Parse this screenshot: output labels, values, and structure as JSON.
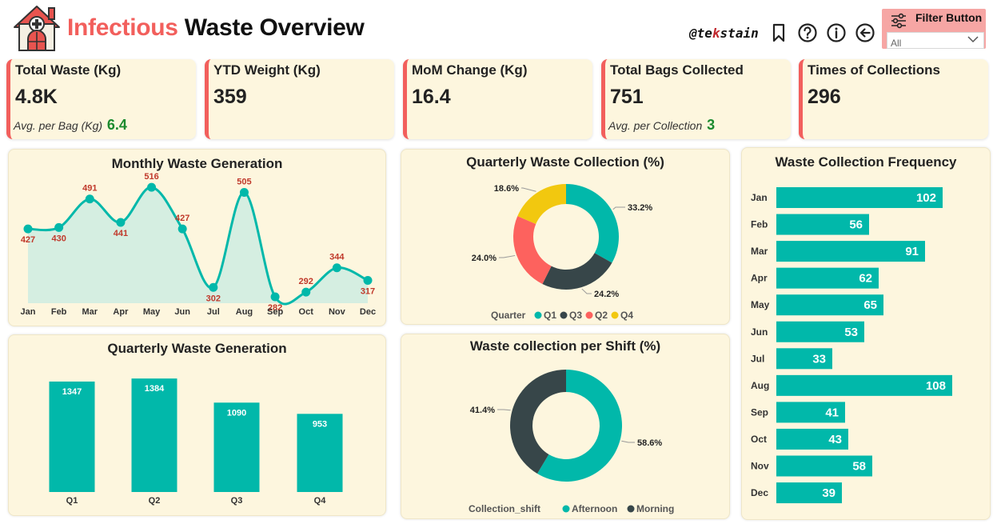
{
  "header": {
    "title_accent": "Infectious",
    "title_rest": "Waste Overview",
    "logo_icon": "hospital-house-icon",
    "handle": "@tekstain",
    "tool_icons": [
      "bookmark-icon",
      "help-icon",
      "info-icon",
      "back-arrow-icon"
    ],
    "filter": {
      "label": "Filter Button",
      "icon": "sliders-icon",
      "value": "All"
    }
  },
  "kpis": [
    {
      "title": "Total Waste (Kg)",
      "value": "4.8K",
      "sub_label": "Avg. per Bag (Kg)",
      "sub_value": "6.4"
    },
    {
      "title": "YTD Weight (Kg)",
      "value": "359"
    },
    {
      "title": "MoM Change (Kg)",
      "value": "16.4"
    },
    {
      "title": "Total Bags Collected",
      "value": "751",
      "sub_label": "Avg. per Collection",
      "sub_value": "3"
    },
    {
      "title": "Times of Collections",
      "value": "296"
    }
  ],
  "colors": {
    "teal": "#01b8aa",
    "dark": "#374649",
    "coral": "#fd625e",
    "yellow": "#f2c80f",
    "accent_red": "#f25f5c",
    "label_red": "#c0392b",
    "green": "#1b8a2e",
    "panel_bg": "#fdf6de",
    "area_fill": "#d5eee1"
  },
  "chart_data": [
    {
      "id": "monthly",
      "type": "area",
      "title": "Monthly Waste Generation",
      "categories": [
        "Jan",
        "Feb",
        "Mar",
        "Apr",
        "May",
        "Jun",
        "Jul",
        "Aug",
        "Sep",
        "Oct",
        "Nov",
        "Dec"
      ],
      "values": [
        427,
        430,
        491,
        441,
        516,
        427,
        302,
        505,
        282,
        292,
        344,
        317
      ],
      "grid": false,
      "legend": "none"
    },
    {
      "id": "quarterly_collection",
      "type": "pie",
      "title": "Quarterly Waste Collection (%)",
      "legend_title": "Quarter",
      "labels": [
        "Q1",
        "Q3",
        "Q2",
        "Q4"
      ],
      "values": [
        33.2,
        24.2,
        24.0,
        18.6
      ],
      "value_labels": [
        "33.2%",
        "24.2%",
        "24.0%",
        "18.6%"
      ],
      "donut": true,
      "legend": "bottom"
    },
    {
      "id": "frequency",
      "type": "bar",
      "orientation": "horizontal",
      "title": "Waste Collection Frequency",
      "categories": [
        "Jan",
        "Feb",
        "Mar",
        "Apr",
        "May",
        "Jun",
        "Jul",
        "Aug",
        "Sep",
        "Oct",
        "Nov",
        "Dec"
      ],
      "values": [
        102,
        56,
        91,
        62,
        65,
        53,
        33,
        108,
        41,
        43,
        58,
        39
      ],
      "grid": false,
      "legend": "none"
    },
    {
      "id": "quarterly_generation",
      "type": "bar",
      "title": "Quarterly Waste Generation",
      "categories": [
        "Q1",
        "Q2",
        "Q3",
        "Q4"
      ],
      "values": [
        1347,
        1384,
        1090,
        953
      ],
      "grid": false,
      "legend": "none"
    },
    {
      "id": "shift",
      "type": "pie",
      "title": "Waste collection per Shift (%)",
      "legend_title": "Collection_shift",
      "labels": [
        "Afternoon",
        "Morning"
      ],
      "values": [
        58.6,
        41.4
      ],
      "value_labels": [
        "58.6%",
        "41.4%"
      ],
      "donut": true,
      "legend": "bottom"
    }
  ]
}
